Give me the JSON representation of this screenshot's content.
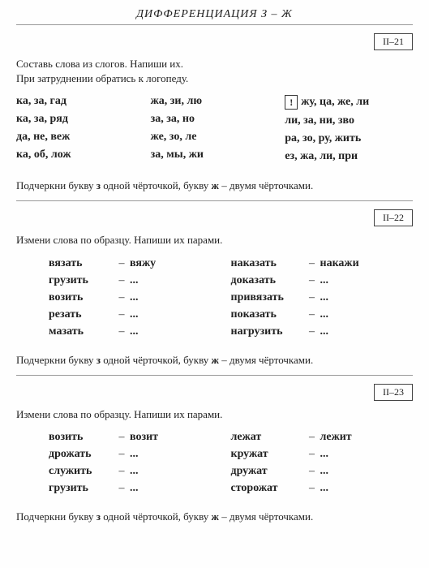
{
  "header": "ДИФФЕРЕНЦИАЦИЯ   З – Ж",
  "ex21": {
    "label": "II–21",
    "instr1": "Составь слова из слогов. Напиши их.",
    "instr2": "При затруднении обратись к логопеду.",
    "col1": [
      "ка, за, гад",
      "ка, за, ряд",
      "да, не, веж",
      "ка, об, лож"
    ],
    "col2": [
      "жа, зи, лю",
      "за, за, но",
      "же, зо, ле",
      "за, мы, жи"
    ],
    "col3": [
      "жу, ца, же, ли",
      "ли, за, ни, зво",
      "ра, зо, ру, жить",
      "ез, жа, ли, при"
    ],
    "bang": "!",
    "footer_a": "Подчеркни букву ",
    "footer_b": "з",
    "footer_c": " одной чёрточкой, букву ",
    "footer_d": "ж",
    "footer_e": " – двумя чёрточками."
  },
  "ex22": {
    "label": "II–22",
    "instr": "Измени слова по образцу. Напиши их парами.",
    "left": [
      [
        "вязать",
        "вяжу"
      ],
      [
        "грузить",
        "..."
      ],
      [
        "возить",
        "..."
      ],
      [
        "резать",
        "..."
      ],
      [
        "мазать",
        "..."
      ]
    ],
    "right": [
      [
        "наказать",
        "накажи"
      ],
      [
        "доказать",
        "..."
      ],
      [
        "привязать",
        "..."
      ],
      [
        "показать",
        "..."
      ],
      [
        "нагрузить",
        "..."
      ]
    ]
  },
  "ex23": {
    "label": "II–23",
    "instr": "Измени слова по образцу. Напиши их парами.",
    "left": [
      [
        "возить",
        "возит"
      ],
      [
        "дрожать",
        "..."
      ],
      [
        "служить",
        "..."
      ],
      [
        "грузить",
        "..."
      ]
    ],
    "right": [
      [
        "лежат",
        "лежит"
      ],
      [
        "кружат",
        "..."
      ],
      [
        "дружат",
        "..."
      ],
      [
        "сторожат",
        "..."
      ]
    ]
  }
}
